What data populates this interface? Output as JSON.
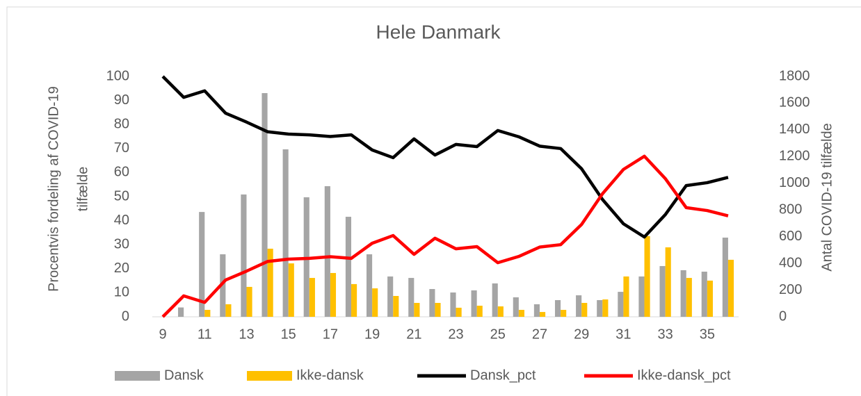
{
  "chart_data": {
    "type": "bar_line",
    "title": "Hele Danmark",
    "ylabel": [
      "Procentvis fordeling af COVID-19",
      "tilfælde"
    ],
    "y2label": "Antal COVID-19 tilfælde",
    "x": [
      9,
      10,
      11,
      12,
      13,
      14,
      15,
      16,
      17,
      18,
      19,
      20,
      21,
      22,
      23,
      24,
      25,
      26,
      27,
      28,
      29,
      30,
      31,
      32,
      33,
      34,
      35,
      36
    ],
    "xlim": [
      8.5,
      36.5
    ],
    "xticks": [
      9,
      11,
      13,
      15,
      17,
      19,
      21,
      23,
      25,
      27,
      29,
      31,
      33,
      35
    ],
    "ylim": [
      0,
      100
    ],
    "yticks": [
      0,
      10,
      20,
      30,
      40,
      50,
      60,
      70,
      80,
      90,
      100
    ],
    "y2lim": [
      0,
      1800
    ],
    "y2ticks": [
      0,
      200,
      400,
      600,
      800,
      1000,
      1200,
      1400,
      1600,
      1800
    ],
    "series": [
      {
        "name": "Dansk",
        "kind": "bar",
        "axis": "y2",
        "color": "#a5a5a5",
        "values": [
          0,
          70,
          785,
          468,
          916,
          1675,
          1254,
          895,
          978,
          749,
          468,
          302,
          291,
          208,
          182,
          198,
          250,
          146,
          94,
          125,
          161,
          125,
          187,
          302,
          380,
          349,
          338,
          593
        ]
      },
      {
        "name": "Ikke-dansk",
        "kind": "bar",
        "axis": "y2",
        "color": "#ffc000",
        "values": [
          0,
          0,
          52,
          94,
          224,
          510,
          400,
          291,
          328,
          245,
          213,
          156,
          104,
          104,
          68,
          83,
          78,
          52,
          36,
          52,
          104,
          130,
          302,
          604,
          520,
          291,
          271,
          427
        ]
      },
      {
        "name": "Dansk_pct",
        "kind": "line",
        "color": "#000000",
        "values": [
          100,
          91.3,
          94,
          84.7,
          81,
          77,
          76,
          75.7,
          75,
          75.7,
          69.4,
          66.2,
          74,
          67.3,
          71.7,
          70.8,
          77.5,
          74.9,
          71,
          70,
          61.6,
          48.8,
          38.7,
          33.2,
          42.5,
          54.6,
          55.8,
          58
        ]
      },
      {
        "name": "Ikke-dansk_pct",
        "kind": "line",
        "color": "#ff0000",
        "values": [
          0,
          8.7,
          6,
          15.3,
          19,
          23,
          24,
          24.3,
          25,
          24.3,
          30.6,
          33.8,
          26,
          32.7,
          28.3,
          29.2,
          22.5,
          25.1,
          29,
          30,
          38.4,
          51.2,
          61.3,
          66.8,
          57.5,
          45.4,
          44.2,
          42
        ]
      }
    ]
  }
}
